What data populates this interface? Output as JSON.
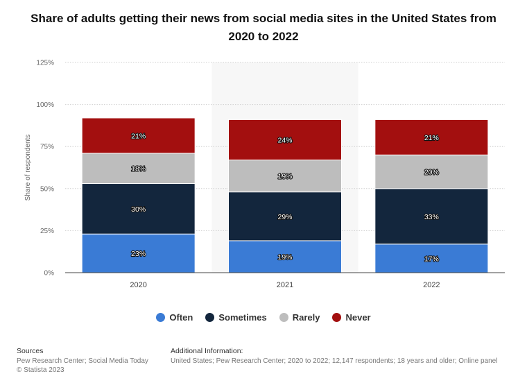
{
  "chart_data": {
    "type": "bar",
    "stacked": true,
    "title": "Share of adults getting their news from social media sites in the United States from 2020 to 2022",
    "xlabel": "",
    "ylabel": "Share of respondents",
    "ylim": [
      0,
      125
    ],
    "yticks": [
      0,
      25,
      50,
      75,
      100,
      125
    ],
    "ytick_labels": [
      "0%",
      "25%",
      "50%",
      "75%",
      "100%",
      "125%"
    ],
    "categories": [
      "2020",
      "2021",
      "2022"
    ],
    "highlight_category": "2021",
    "series": [
      {
        "name": "Often",
        "color": "#3a7bd5",
        "values": [
          23,
          19,
          17
        ],
        "labels": [
          "23%",
          "19%",
          "17%"
        ]
      },
      {
        "name": "Sometimes",
        "color": "#13263d",
        "values": [
          30,
          29,
          33
        ],
        "labels": [
          "30%",
          "29%",
          "33%"
        ]
      },
      {
        "name": "Rarely",
        "color": "#bdbdbd",
        "values": [
          18,
          19,
          20
        ],
        "labels": [
          "18%",
          "19%",
          "20%"
        ]
      },
      {
        "name": "Never",
        "color": "#a30f0f",
        "values": [
          21,
          24,
          21
        ],
        "labels": [
          "21%",
          "24%",
          "21%"
        ]
      }
    ],
    "legend_position": "bottom"
  },
  "footer": {
    "sources_heading": "Sources",
    "sources_text": "Pew Research Center; Social Media Today",
    "copyright": "© Statista 2023",
    "info_heading": "Additional Information:",
    "info_text": "United States; Pew Research Center; 2020 to 2022; 12,147 respondents; 18 years and older; Online panel"
  }
}
